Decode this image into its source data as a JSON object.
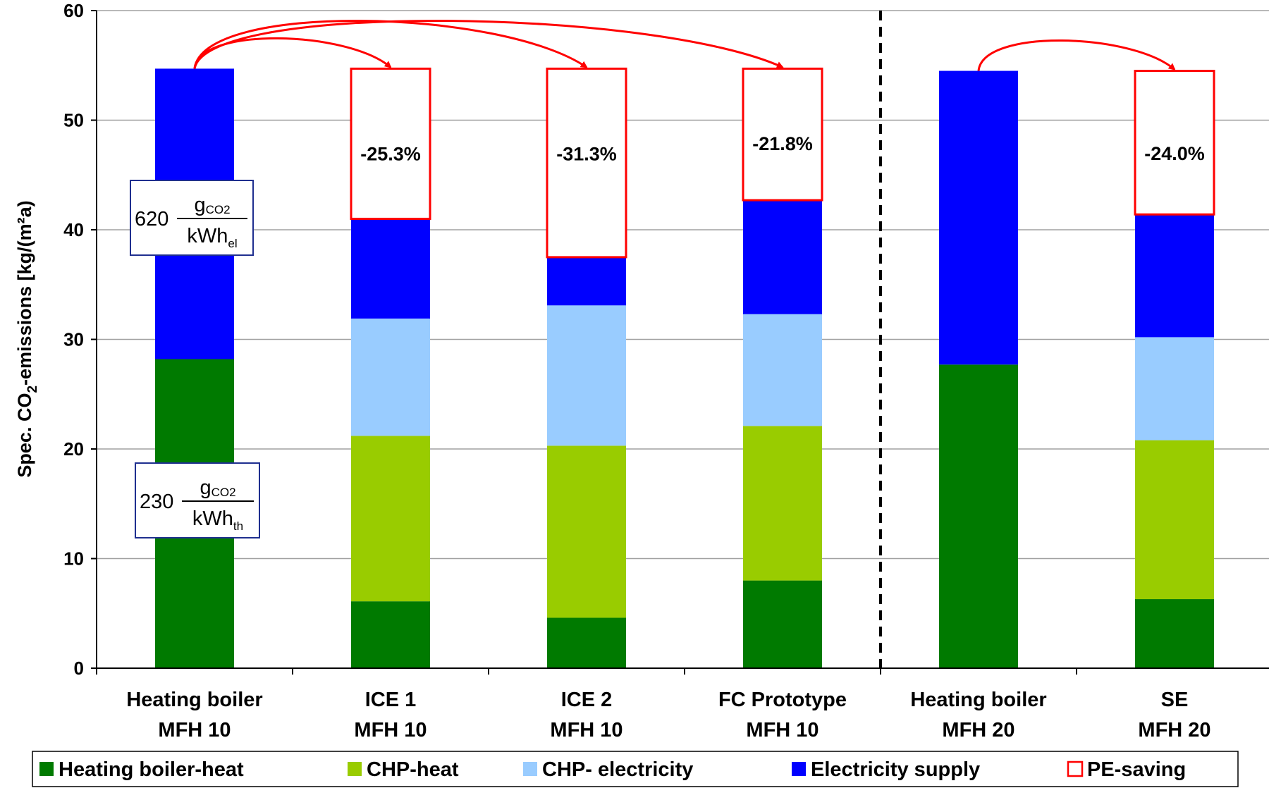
{
  "chart_data": {
    "type": "bar",
    "stacked": true,
    "ylabel_parts": [
      "Spec. CO",
      "2",
      "-emissions [kg/(m²a)"
    ],
    "ylim": [
      0,
      60
    ],
    "yticks": [
      "0",
      "10",
      "20",
      "30",
      "40",
      "50",
      "60"
    ],
    "grid": true,
    "categories": [
      {
        "line1": "Heating  boiler",
        "line2": "MFH 10"
      },
      {
        "line1": "ICE 1",
        "line2": "MFH 10"
      },
      {
        "line1": "ICE 2",
        "line2": "MFH 10"
      },
      {
        "line1": "FC Prototype",
        "line2": "MFH 10"
      },
      {
        "line1": "Heating  boiler",
        "line2": "MFH 20"
      },
      {
        "line1": "SE",
        "line2": "MFH 20"
      }
    ],
    "series": [
      {
        "name": "Heating boiler-heat",
        "color": "#007a00",
        "values": [
          28.2,
          6.1,
          4.6,
          8.0,
          27.7,
          6.3
        ]
      },
      {
        "name": "CHP-heat",
        "color": "#99cc00",
        "values": [
          0,
          15.1,
          15.7,
          14.1,
          0,
          14.5
        ]
      },
      {
        "name": "CHP- electricity",
        "color": "#99ccff",
        "values": [
          0,
          10.7,
          12.8,
          10.2,
          0,
          9.4
        ]
      },
      {
        "name": "Electricity supply",
        "color": "#0000ff",
        "values": [
          26.5,
          9.1,
          4.4,
          10.4,
          26.8,
          11.2
        ]
      }
    ],
    "pe_saving": {
      "name": "PE-saving",
      "color": "#ff0000",
      "labels": [
        "",
        "-25.3%",
        "-31.3%",
        "-21.8%",
        "",
        "-24.0%"
      ],
      "tops": [
        null,
        54.7,
        54.7,
        54.7,
        null,
        54.5
      ]
    },
    "arrows": [
      [
        0,
        1
      ],
      [
        0,
        2
      ],
      [
        0,
        3
      ],
      [
        4,
        5
      ]
    ],
    "separator_after_category": 3,
    "factor_boxes": [
      {
        "value": "620",
        "numerator": "g",
        "numerator_sub": "CO2",
        "denominator": "kWh",
        "denominator_sub": "el"
      },
      {
        "value": "230",
        "numerator": "g",
        "numerator_sub": "CO2",
        "denominator": "kWh",
        "denominator_sub": "th"
      }
    ],
    "legend_position": "bottom"
  }
}
